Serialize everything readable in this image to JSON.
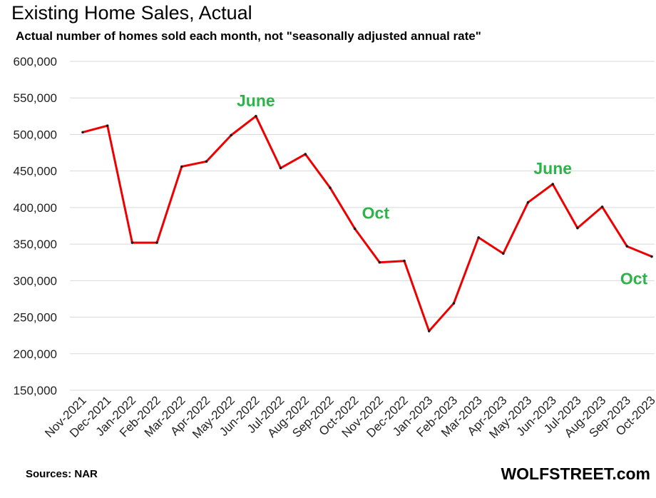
{
  "chart_data": {
    "type": "line",
    "title": "Existing Home Sales, Actual",
    "subtitle": "Actual number of homes sold each month, not \"seasonally adjusted annual rate\"",
    "xlabel": "",
    "ylabel": "",
    "ylim": [
      150000,
      600000
    ],
    "yticks": [
      "150,000",
      "200,000",
      "250,000",
      "300,000",
      "350,000",
      "400,000",
      "450,000",
      "500,000",
      "550,000",
      "600,000"
    ],
    "grid": true,
    "categories": [
      "Nov-2021",
      "Dec-2021",
      "Jan-2022",
      "Feb-2022",
      "Mar-2022",
      "Apr-2022",
      "May-2022",
      "Jun-2022",
      "Jul-2022",
      "Aug-2022",
      "Sep-2022",
      "Oct-2022",
      "Nov-2022",
      "Dec-2022",
      "Jan-2023",
      "Feb-2023",
      "Mar-2023",
      "Apr-2023",
      "May-2023",
      "Jun-2023",
      "Jul-2023",
      "Aug-2023",
      "Sep-2023",
      "Oct-2023"
    ],
    "series": [
      {
        "values": [
          503000,
          512000,
          352000,
          352000,
          456000,
          463000,
          499000,
          525000,
          454000,
          473000,
          427000,
          371000,
          325000,
          327000,
          231000,
          269000,
          359000,
          337000,
          407000,
          432000,
          372000,
          401000,
          347000,
          333000
        ],
        "color": "#ee0000"
      }
    ],
    "annotations": [
      {
        "text": "June",
        "category": "Jun-2022",
        "value": 525000,
        "position": "above"
      },
      {
        "text": "Oct",
        "category": "Oct-2022",
        "value": 371000,
        "position": "right"
      },
      {
        "text": "June",
        "category": "Jun-2023",
        "value": 432000,
        "position": "above"
      },
      {
        "text": "Oct",
        "category": "Oct-2023",
        "value": 333000,
        "position": "below"
      }
    ],
    "annotation_color": "#2db34a"
  },
  "footer": {
    "source": "Sources: NAR",
    "brand": "WOLFSTREET.com"
  }
}
